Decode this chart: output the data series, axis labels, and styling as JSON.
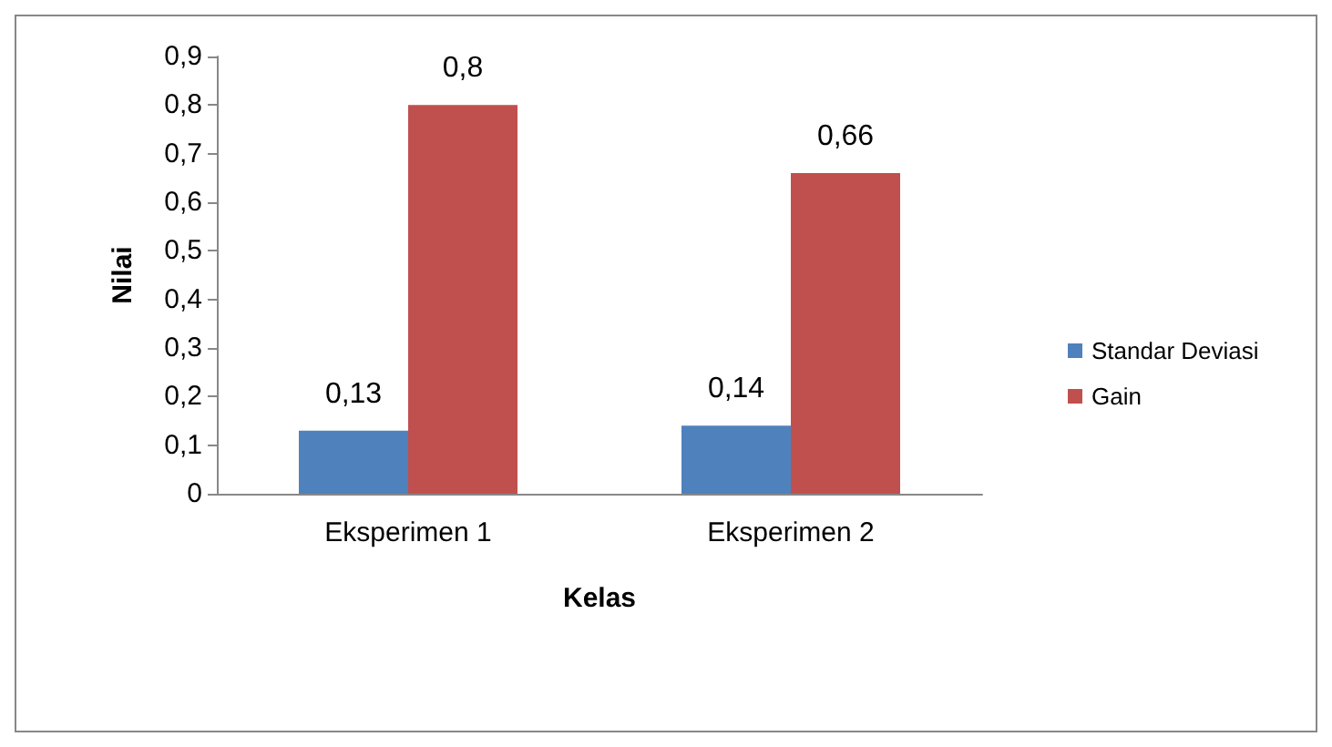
{
  "chart_data": {
    "type": "bar",
    "xlabel": "Kelas",
    "ylabel": "Nilai",
    "categories": [
      "Eksperimen 1",
      "Eksperimen 2"
    ],
    "series": [
      {
        "name": "Standar Deviasi",
        "color": "#4f81bd",
        "values": [
          0.13,
          0.14
        ],
        "value_labels": [
          "0,13",
          "0,14"
        ]
      },
      {
        "name": "Gain",
        "color": "#c0504d",
        "values": [
          0.8,
          0.66
        ],
        "value_labels": [
          "0,8",
          "0,66"
        ]
      }
    ],
    "ylim": [
      0,
      0.9
    ],
    "yticks": [
      {
        "value": 0,
        "label": "0"
      },
      {
        "value": 0.1,
        "label": "0,1"
      },
      {
        "value": 0.2,
        "label": "0,2"
      },
      {
        "value": 0.3,
        "label": "0,3"
      },
      {
        "value": 0.4,
        "label": "0,4"
      },
      {
        "value": 0.5,
        "label": "0,5"
      },
      {
        "value": 0.6,
        "label": "0,6"
      },
      {
        "value": 0.7,
        "label": "0,7"
      },
      {
        "value": 0.8,
        "label": "0,8"
      },
      {
        "value": 0.9,
        "label": "0,9"
      }
    ],
    "grid": false,
    "legend": "right"
  }
}
